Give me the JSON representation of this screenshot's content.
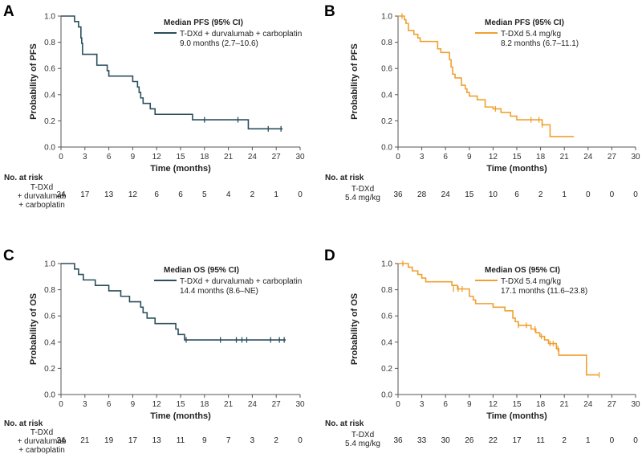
{
  "chart_data": [
    {
      "id": "A",
      "type": "line",
      "panel_label": "A",
      "ylabel": "Probability of PFS",
      "xlabel": "Time (months)",
      "xlim": [
        0,
        30
      ],
      "ylim": [
        0,
        1.0
      ],
      "x_ticks": [
        "0",
        "3",
        "6",
        "9",
        "12",
        "15",
        "18",
        "21",
        "24",
        "27",
        "30"
      ],
      "y_ticks": [
        "0.0",
        "0.2",
        "0.4",
        "0.6",
        "0.8",
        "1.0"
      ],
      "color": "#2b4f5e",
      "legend_title": "Median PFS (95% CI)",
      "legend_line1": "T-DXd + durvalumab + carboplatin",
      "legend_line2": "9.0 months (2.7–10.6)",
      "series": [
        {
          "name": "T-DXd + durvalumab + carboplatin",
          "steps": [
            [
              0,
              1.0
            ],
            [
              1.7,
              0.958
            ],
            [
              2.2,
              0.917
            ],
            [
              2.5,
              0.833
            ],
            [
              2.6,
              0.792
            ],
            [
              2.7,
              0.708
            ],
            [
              4.5,
              0.625
            ],
            [
              5.8,
              0.583
            ],
            [
              6.0,
              0.542
            ],
            [
              9.0,
              0.5
            ],
            [
              9.6,
              0.458
            ],
            [
              9.8,
              0.417
            ],
            [
              10.0,
              0.375
            ],
            [
              10.3,
              0.333
            ],
            [
              11.2,
              0.292
            ],
            [
              11.8,
              0.25
            ],
            [
              16.5,
              0.208
            ],
            [
              23.5,
              0.139
            ],
            [
              27.8,
              0.139
            ]
          ],
          "censored": [
            [
              18.0,
              0.208
            ],
            [
              22.2,
              0.208
            ],
            [
              26.0,
              0.139
            ],
            [
              27.6,
              0.139
            ]
          ]
        }
      ],
      "risk": {
        "title": "No. at risk",
        "arm_lines": [
          "T-DXd",
          "+ durvalumab",
          "+ carboplatin"
        ],
        "values": [
          "24",
          "17",
          "13",
          "12",
          "6",
          "6",
          "5",
          "4",
          "2",
          "1",
          "0"
        ]
      }
    },
    {
      "id": "B",
      "type": "line",
      "panel_label": "B",
      "ylabel": "Probability of PFS",
      "xlabel": "Time (months)",
      "xlim": [
        0,
        30
      ],
      "ylim": [
        0,
        1.0
      ],
      "x_ticks": [
        "0",
        "3",
        "6",
        "9",
        "12",
        "15",
        "18",
        "21",
        "24",
        "27",
        "30"
      ],
      "y_ticks": [
        "0.0",
        "0.2",
        "0.4",
        "0.6",
        "0.8",
        "1.0"
      ],
      "color": "#f0a030",
      "legend_title": "Median PFS (95% CI)",
      "legend_line1": "T-DXd 5.4 mg/kg",
      "legend_line2": "8.2 months (6.7–11.1)",
      "series": [
        {
          "name": "T-DXd 5.4 mg/kg",
          "steps": [
            [
              0,
              1.0
            ],
            [
              0.8,
              0.972
            ],
            [
              1.0,
              0.944
            ],
            [
              1.3,
              0.889
            ],
            [
              2.0,
              0.861
            ],
            [
              2.5,
              0.833
            ],
            [
              2.8,
              0.806
            ],
            [
              5.0,
              0.75
            ],
            [
              5.4,
              0.722
            ],
            [
              6.5,
              0.667
            ],
            [
              6.7,
              0.611
            ],
            [
              6.9,
              0.556
            ],
            [
              7.2,
              0.528
            ],
            [
              8.0,
              0.472
            ],
            [
              8.5,
              0.444
            ],
            [
              8.7,
              0.417
            ],
            [
              9.0,
              0.389
            ],
            [
              10.0,
              0.361
            ],
            [
              11.0,
              0.306
            ],
            [
              12.0,
              0.292
            ],
            [
              13.0,
              0.264
            ],
            [
              14.2,
              0.236
            ],
            [
              15.0,
              0.208
            ],
            [
              18.2,
              0.17
            ],
            [
              19.2,
              0.08
            ],
            [
              22.2,
              0.08
            ]
          ],
          "censored": [
            [
              0.5,
              1.0
            ],
            [
              12.3,
              0.292
            ],
            [
              16.8,
              0.208
            ],
            [
              17.8,
              0.208
            ],
            [
              18.2,
              0.17
            ]
          ]
        }
      ],
      "risk": {
        "title": "No. at risk",
        "arm_lines": [
          "T-DXd",
          "5.4 mg/kg"
        ],
        "values": [
          "36",
          "28",
          "24",
          "15",
          "10",
          "6",
          "2",
          "1",
          "0",
          "0",
          "0"
        ]
      }
    },
    {
      "id": "C",
      "type": "line",
      "panel_label": "C",
      "ylabel": "Probability of OS",
      "xlabel": "Time (months)",
      "xlim": [
        0,
        30
      ],
      "ylim": [
        0,
        1.0
      ],
      "x_ticks": [
        "0",
        "3",
        "6",
        "9",
        "12",
        "15",
        "18",
        "21",
        "24",
        "27",
        "30"
      ],
      "y_ticks": [
        "0.0",
        "0.2",
        "0.4",
        "0.6",
        "0.8",
        "1.0"
      ],
      "color": "#2b4f5e",
      "legend_title": "Median OS (95% CI)",
      "legend_line1": "T-DXd + durvalumab + carboplatin",
      "legend_line2": "14.4 months (8.6–NE)",
      "series": [
        {
          "name": "T-DXd + durvalumab + carboplatin",
          "steps": [
            [
              0,
              1.0
            ],
            [
              1.7,
              0.958
            ],
            [
              2.2,
              0.917
            ],
            [
              2.8,
              0.875
            ],
            [
              4.3,
              0.833
            ],
            [
              6.0,
              0.792
            ],
            [
              7.5,
              0.75
            ],
            [
              8.6,
              0.708
            ],
            [
              10.0,
              0.667
            ],
            [
              10.3,
              0.625
            ],
            [
              10.8,
              0.583
            ],
            [
              11.8,
              0.542
            ],
            [
              14.4,
              0.5
            ],
            [
              14.7,
              0.458
            ],
            [
              15.5,
              0.417
            ],
            [
              28.2,
              0.417
            ]
          ],
          "censored": [
            [
              15.7,
              0.417
            ],
            [
              20.0,
              0.417
            ],
            [
              22.0,
              0.417
            ],
            [
              22.7,
              0.417
            ],
            [
              23.3,
              0.417
            ],
            [
              26.3,
              0.417
            ],
            [
              27.4,
              0.417
            ],
            [
              28.0,
              0.417
            ]
          ]
        }
      ],
      "risk": {
        "title": "No. at risk",
        "arm_lines": [
          "T-DXd",
          "+ durvalumab",
          "+ carboplatin"
        ],
        "values": [
          "24",
          "21",
          "19",
          "17",
          "13",
          "11",
          "9",
          "7",
          "3",
          "2",
          "0"
        ]
      }
    },
    {
      "id": "D",
      "type": "line",
      "panel_label": "D",
      "ylabel": "Probability of OS",
      "xlabel": "Time (months)",
      "xlim": [
        0,
        30
      ],
      "ylim": [
        0,
        1.0
      ],
      "x_ticks": [
        "0",
        "3",
        "6",
        "9",
        "12",
        "15",
        "18",
        "21",
        "24",
        "27",
        "30"
      ],
      "y_ticks": [
        "0.0",
        "0.2",
        "0.4",
        "0.6",
        "0.8",
        "1.0"
      ],
      "color": "#f0a030",
      "legend_title": "Median OS (95% CI)",
      "legend_line1": "T-DXd 5.4 mg/kg",
      "legend_line2": "17.1 months (11.6–23.8)",
      "series": [
        {
          "name": "T-DXd 5.4 mg/kg",
          "steps": [
            [
              0,
              1.0
            ],
            [
              1.3,
              0.972
            ],
            [
              1.8,
              0.944
            ],
            [
              2.5,
              0.917
            ],
            [
              3.0,
              0.889
            ],
            [
              3.5,
              0.861
            ],
            [
              6.8,
              0.833
            ],
            [
              7.5,
              0.806
            ],
            [
              9.0,
              0.75
            ],
            [
              9.5,
              0.722
            ],
            [
              9.8,
              0.694
            ],
            [
              12.0,
              0.667
            ],
            [
              13.5,
              0.639
            ],
            [
              14.5,
              0.583
            ],
            [
              14.8,
              0.556
            ],
            [
              15.2,
              0.528
            ],
            [
              16.8,
              0.5
            ],
            [
              17.4,
              0.472
            ],
            [
              17.9,
              0.444
            ],
            [
              18.5,
              0.417
            ],
            [
              19.0,
              0.389
            ],
            [
              20.0,
              0.35
            ],
            [
              20.3,
              0.3
            ],
            [
              23.8,
              0.15
            ],
            [
              25.4,
              0.15
            ]
          ],
          "censored": [
            [
              0.6,
              1.0
            ],
            [
              7.0,
              0.806
            ],
            [
              7.6,
              0.806
            ],
            [
              8.1,
              0.806
            ],
            [
              15.2,
              0.528
            ],
            [
              16.2,
              0.528
            ],
            [
              17.3,
              0.5
            ],
            [
              18.1,
              0.444
            ],
            [
              19.2,
              0.389
            ],
            [
              19.6,
              0.389
            ],
            [
              20.2,
              0.35
            ],
            [
              25.4,
              0.15
            ]
          ]
        }
      ],
      "risk": {
        "title": "No. at risk",
        "arm_lines": [
          "T-DXd",
          "5.4 mg/kg"
        ],
        "values": [
          "36",
          "33",
          "30",
          "26",
          "22",
          "17",
          "11",
          "2",
          "1",
          "0",
          "0"
        ]
      }
    }
  ]
}
